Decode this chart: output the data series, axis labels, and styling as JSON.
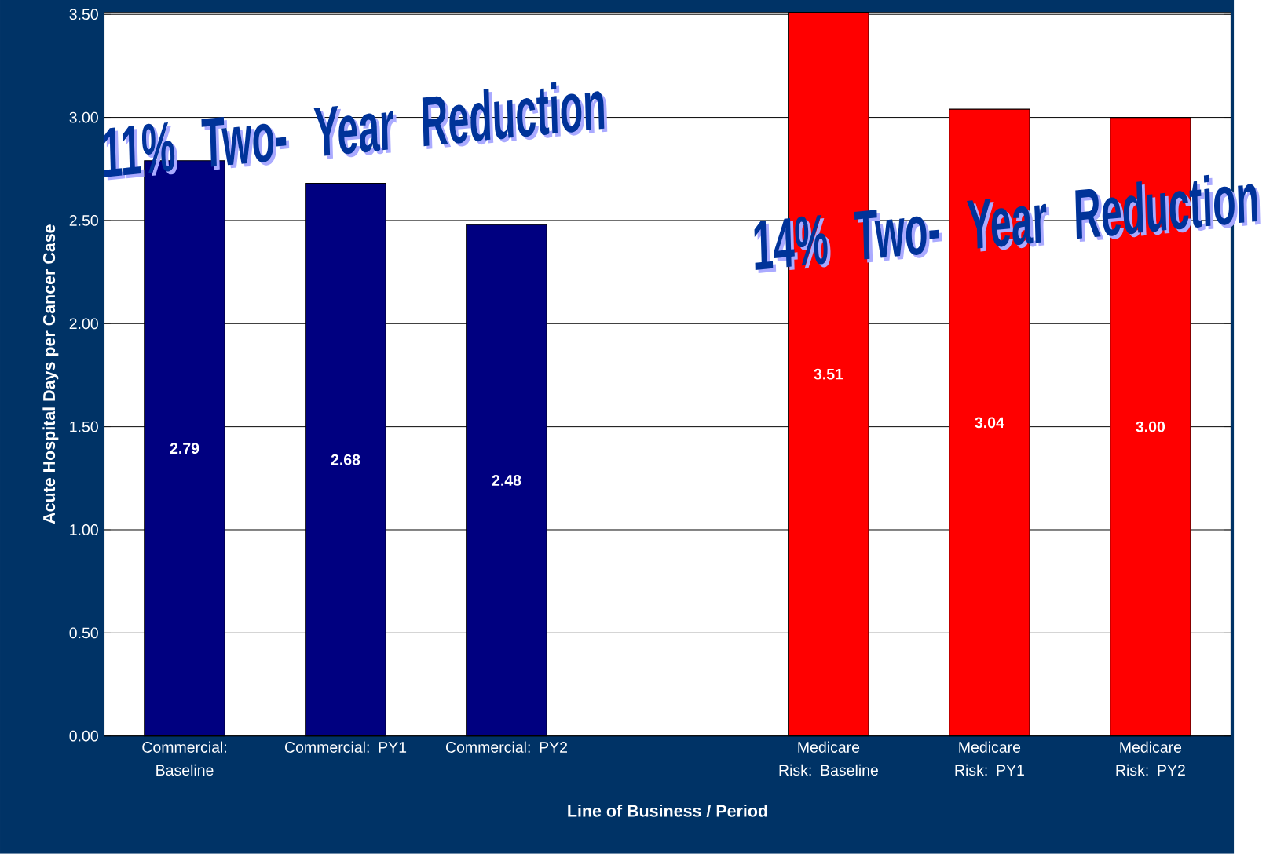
{
  "chart_data": {
    "type": "bar",
    "xlabel": "Line of Business / Period",
    "ylabel": "Acute Hospital Days per Cancer Case",
    "categories": [
      "Commercial: Baseline",
      "Commercial:  PY1",
      "Commercial:  PY2",
      null,
      "Medicare Risk: Baseline",
      "Medicare Risk: PY1",
      "Medicare Risk: PY2"
    ],
    "values": [
      2.79,
      2.68,
      2.48,
      null,
      3.51,
      3.04,
      3.0
    ],
    "colors": [
      "#000080",
      "#000080",
      "#000080",
      null,
      "#ff0000",
      "#ff0000",
      "#ff0000"
    ],
    "ylim": [
      0,
      3.51
    ],
    "yticks": [
      {
        "value": 0,
        "label": "0.00"
      },
      {
        "value": 0.5,
        "label": "0.50"
      },
      {
        "value": 1,
        "label": "1.00"
      },
      {
        "value": 1.5,
        "label": "1.50"
      },
      {
        "value": 2,
        "label": "2.00"
      },
      {
        "value": 2.5,
        "label": "2.50"
      },
      {
        "value": 3,
        "label": "3.00"
      },
      {
        "value": 3.5,
        "label": "3.50"
      }
    ],
    "grid": "y",
    "value_labels": [
      "2.79",
      "2.68",
      "2.48",
      null,
      "3.51",
      "3.04",
      "3.00"
    ],
    "annotations": [
      "11% Two- Year Reduction",
      "14% Two- Year Reduction"
    ]
  }
}
